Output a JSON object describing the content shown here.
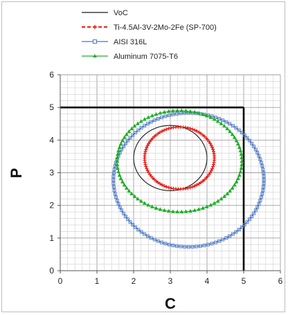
{
  "chart_data": {
    "type": "scatter",
    "title": "",
    "xlabel": "C",
    "ylabel": "P",
    "xlim": [
      0,
      6
    ],
    "ylim": [
      0,
      6
    ],
    "xticks": [
      "0",
      "1",
      "2",
      "3",
      "4",
      "5",
      "6"
    ],
    "yticks": [
      "0",
      "1",
      "2",
      "3",
      "4",
      "5",
      "6"
    ],
    "grid": true,
    "minor_grid_step": 0.2,
    "legend_position": "top-left",
    "region_box": {
      "x": [
        0,
        5
      ],
      "y": [
        0,
        5
      ]
    },
    "series": [
      {
        "name": "VoC",
        "color": "#1a1a1a",
        "line": "solid",
        "marker": "none",
        "center": [
          3.0,
          3.45
        ],
        "radii": [
          1.0,
          1.0
        ],
        "points": 60
      },
      {
        "name": "Ti-4.5Al-3V-2Mo-2Fe (SP-700)",
        "color": "#e8201c",
        "line": "dashed",
        "marker": "plus",
        "center": [
          3.25,
          3.45
        ],
        "radii": [
          0.95,
          0.95
        ],
        "points": 90
      },
      {
        "name": "AISI 316L",
        "color": "#4a76c2",
        "line": "solid",
        "marker": "square",
        "center": [
          3.5,
          2.78
        ],
        "radii": [
          2.05,
          2.05
        ],
        "points": 120
      },
      {
        "name": "Aluminum 7075-T6",
        "color": "#1fae28",
        "line": "solid",
        "marker": "triangle",
        "center": [
          3.25,
          3.35
        ],
        "radii": [
          1.7,
          1.55
        ],
        "points": 90
      }
    ]
  }
}
